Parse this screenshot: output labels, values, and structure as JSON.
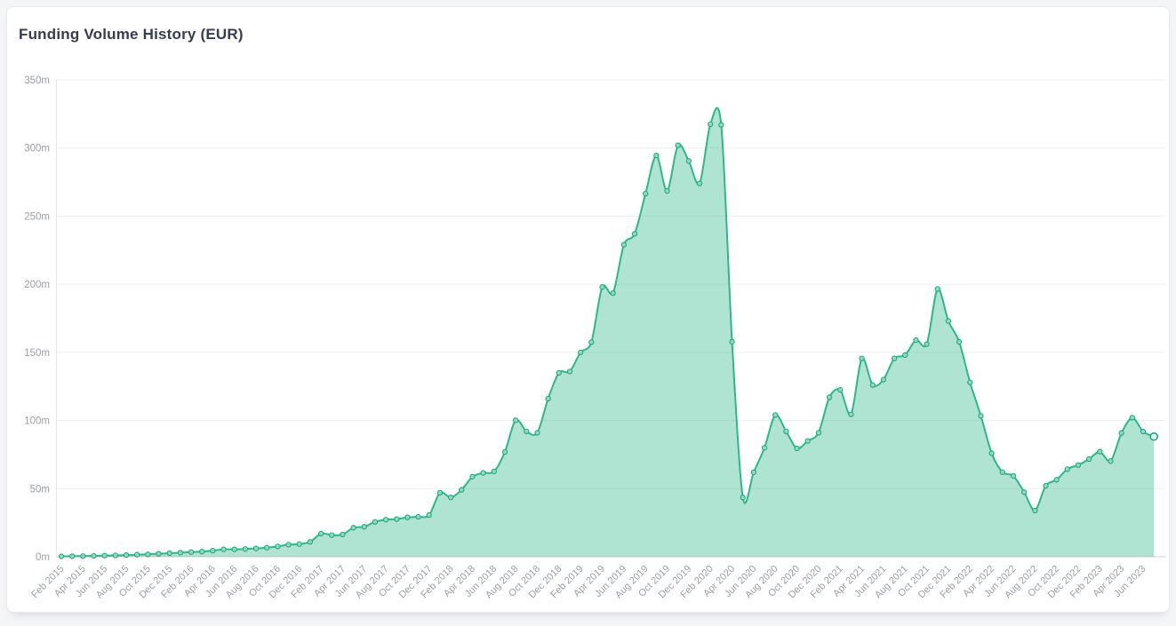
{
  "card": {
    "title": "Funding Volume History (EUR)"
  },
  "chart_data": {
    "type": "area",
    "title": "Funding Volume History (EUR)",
    "unit": "EUR millions",
    "xlabel": "",
    "ylabel": "",
    "ylim": [
      0,
      350
    ],
    "y_tick_step": 50,
    "y_tick_labels": [
      "0m",
      "50m",
      "100m",
      "150m",
      "200m",
      "250m",
      "300m",
      "350m"
    ],
    "x_label_every": 2,
    "grid": "horizontal",
    "legend": "none",
    "marker": "circle",
    "categories": [
      "Feb 2015",
      "Mar 2015",
      "Apr 2015",
      "May 2015",
      "Jun 2015",
      "Jul 2015",
      "Aug 2015",
      "Sep 2015",
      "Oct 2015",
      "Nov 2015",
      "Dec 2015",
      "Jan 2016",
      "Feb 2016",
      "Mar 2016",
      "Apr 2016",
      "May 2016",
      "Jun 2016",
      "Jul 2016",
      "Aug 2016",
      "Sep 2016",
      "Oct 2016",
      "Nov 2016",
      "Dec 2016",
      "Jan 2017",
      "Feb 2017",
      "Mar 2017",
      "Apr 2017",
      "May 2017",
      "Jun 2017",
      "Jul 2017",
      "Aug 2017",
      "Sep 2017",
      "Oct 2017",
      "Nov 2017",
      "Dec 2017",
      "Jan 2018",
      "Feb 2018",
      "Mar 2018",
      "Apr 2018",
      "May 2018",
      "Jun 2018",
      "Jul 2018",
      "Aug 2018",
      "Sep 2018",
      "Oct 2018",
      "Nov 2018",
      "Dec 2018",
      "Jan 2019",
      "Feb 2019",
      "Mar 2019",
      "Apr 2019",
      "May 2019",
      "Jun 2019",
      "Jul 2019",
      "Aug 2019",
      "Sep 2019",
      "Oct 2019",
      "Nov 2019",
      "Dec 2019",
      "Jan 2020",
      "Feb 2020",
      "Mar 2020",
      "Apr 2020",
      "May 2020",
      "Jun 2020",
      "Jul 2020",
      "Aug 2020",
      "Sep 2020",
      "Oct 2020",
      "Nov 2020",
      "Dec 2020",
      "Jan 2021",
      "Feb 2021",
      "Mar 2021",
      "Apr 2021",
      "May 2021",
      "Jun 2021",
      "Jul 2021",
      "Aug 2021",
      "Sep 2021",
      "Oct 2021",
      "Nov 2021",
      "Dec 2021",
      "Jan 2022",
      "Feb 2022",
      "Mar 2022",
      "Apr 2022",
      "May 2022",
      "Jun 2022",
      "Jul 2022",
      "Aug 2022",
      "Sep 2022",
      "Oct 2022",
      "Nov 2022",
      "Dec 2022",
      "Jan 2023",
      "Feb 2023",
      "Mar 2023",
      "Apr 2023",
      "May 2023",
      "Jun 2023",
      "Jul 2023"
    ],
    "values": [
      0.3,
      0.4,
      0.5,
      0.6,
      0.8,
      1.0,
      1.2,
      1.5,
      1.8,
      2.2,
      2.6,
      3.0,
      3.4,
      3.8,
      4.5,
      5.4,
      5.4,
      5.7,
      6.1,
      6.7,
      7.6,
      8.9,
      9.3,
      10.9,
      17.0,
      15.9,
      16.3,
      21.3,
      22.0,
      25.6,
      27.2,
      27.6,
      28.9,
      29.3,
      30.6,
      47.0,
      43.5,
      49.1,
      58.7,
      61.5,
      62.6,
      76.9,
      100.2,
      92.0,
      91.0,
      116.0,
      135.0,
      136.0,
      150.0,
      157.5,
      198.0,
      193.5,
      229.0,
      237.0,
      266.5,
      294.5,
      268.5,
      302.0,
      290.5,
      274.0,
      317.5,
      317.0,
      157.8,
      43.5,
      62.0,
      80.0,
      104.0,
      92.0,
      79.5,
      85.0,
      91.0,
      117.0,
      122.5,
      104.5,
      145.6,
      126.0,
      130.0,
      145.6,
      148.0,
      159.0,
      156.0,
      196.5,
      173.0,
      157.7,
      128.0,
      103.4,
      76.0,
      62.1,
      59.3,
      47.4,
      33.9,
      52.1,
      56.5,
      64.3,
      67.3,
      71.7,
      77.1,
      70.2,
      90.8,
      102.1,
      91.9,
      88.2
    ],
    "colors": {
      "line": "#2eb88a",
      "fill": "rgba(46,184,138,0.38)",
      "marker_fill": "#8edcc0",
      "marker_stroke": "#27a67c",
      "last_marker_fill": "#e2f6ee",
      "grid": "#edeff3",
      "axis_bottom": "#ccd1d9",
      "axis_left": "#e3e6ea",
      "tick_text": "#9aa0a8",
      "title_text": "#363d4c"
    }
  }
}
